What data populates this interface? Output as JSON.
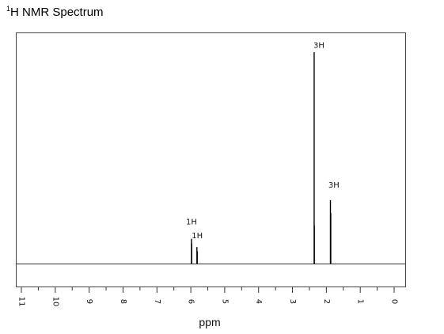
{
  "header": {
    "title_sup": "1",
    "title_rest": "H NMR Spectrum"
  },
  "chart_data": {
    "type": "line",
    "title": "1H NMR Spectrum",
    "xlabel": "ppm",
    "ylabel": "",
    "xlim": [
      11,
      0
    ],
    "x_reversed": true,
    "grid": false,
    "major_ticks": [
      11,
      10,
      9,
      8,
      7,
      6,
      5,
      4,
      3,
      2,
      1,
      0
    ],
    "tick_labels": [
      "11",
      "10",
      "9",
      "8",
      "7",
      "6",
      "5",
      "4",
      "3",
      "2",
      "1",
      "0"
    ],
    "minor_tick_step": 0.5,
    "tick_label_rotation": 90,
    "peaks": [
      {
        "ppm": 5.98,
        "height": 0.117,
        "label": ""
      },
      {
        "ppm": 5.975,
        "height": 0.095,
        "label": ""
      },
      {
        "ppm": 5.82,
        "height": 0.078,
        "label": ""
      },
      {
        "ppm": 5.81,
        "height": 0.058,
        "label": ""
      },
      {
        "ppm": 2.36,
        "height": 1.0,
        "label": ""
      },
      {
        "ppm": 2.355,
        "height": 0.18,
        "label": ""
      },
      {
        "ppm": 1.88,
        "height": 0.3,
        "label": ""
      },
      {
        "ppm": 1.87,
        "height": 0.24,
        "label": ""
      }
    ],
    "integrations": [
      {
        "ppm": 5.98,
        "height": 0.185,
        "text": "1H"
      },
      {
        "ppm": 5.81,
        "height": 0.12,
        "text": "1H"
      },
      {
        "ppm": 2.22,
        "height": 1.02,
        "text": "3H"
      },
      {
        "ppm": 1.78,
        "height": 0.36,
        "text": "3H"
      }
    ]
  }
}
